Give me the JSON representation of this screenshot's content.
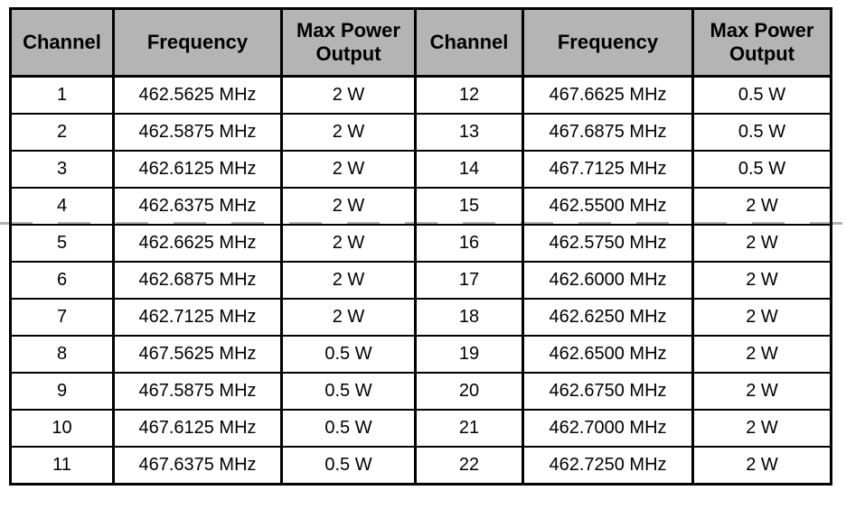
{
  "page": {
    "background": "#ffffff",
    "page_break_color": "#b0b0b0"
  },
  "table": {
    "header_bg": "#b4b4b4",
    "border_color": "#000000",
    "headers": [
      "Channel",
      "Frequency",
      "Max Power Output",
      "Channel",
      "Frequency",
      "Max Power Output"
    ],
    "rows": [
      {
        "channel_l": "1",
        "frequency_l": "462.5625 MHz",
        "power_l": "2 W",
        "channel_r": "12",
        "frequency_r": "467.6625 MHz",
        "power_r": "0.5 W"
      },
      {
        "channel_l": "2",
        "frequency_l": "462.5875 MHz",
        "power_l": "2 W",
        "channel_r": "13",
        "frequency_r": "467.6875 MHz",
        "power_r": "0.5 W"
      },
      {
        "channel_l": "3",
        "frequency_l": "462.6125 MHz",
        "power_l": "2 W",
        "channel_r": "14",
        "frequency_r": "467.7125 MHz",
        "power_r": "0.5 W"
      },
      {
        "channel_l": "4",
        "frequency_l": "462.6375 MHz",
        "power_l": "2 W",
        "channel_r": "15",
        "frequency_r": "462.5500 MHz",
        "power_r": "2 W"
      },
      {
        "channel_l": "5",
        "frequency_l": "462.6625 MHz",
        "power_l": "2 W",
        "channel_r": "16",
        "frequency_r": "462.5750 MHz",
        "power_r": "2 W"
      },
      {
        "channel_l": "6",
        "frequency_l": "462.6875 MHz",
        "power_l": "2 W",
        "channel_r": "17",
        "frequency_r": "462.6000 MHz",
        "power_r": "2 W"
      },
      {
        "channel_l": "7",
        "frequency_l": "462.7125 MHz",
        "power_l": "2 W",
        "channel_r": "18",
        "frequency_r": "462.6250 MHz",
        "power_r": "2 W"
      },
      {
        "channel_l": "8",
        "frequency_l": "467.5625 MHz",
        "power_l": "0.5 W",
        "channel_r": "19",
        "frequency_r": "462.6500 MHz",
        "power_r": "2 W"
      },
      {
        "channel_l": "9",
        "frequency_l": "467.5875 MHz",
        "power_l": "0.5 W",
        "channel_r": "20",
        "frequency_r": "462.6750 MHz",
        "power_r": "2 W"
      },
      {
        "channel_l": "10",
        "frequency_l": "467.6125 MHz",
        "power_l": "0.5 W",
        "channel_r": "21",
        "frequency_r": "462.7000 MHz",
        "power_r": "2 W"
      },
      {
        "channel_l": "11",
        "frequency_l": "467.6375 MHz",
        "power_l": "0.5 W",
        "channel_r": "22",
        "frequency_r": "462.7250 MHz",
        "power_r": "2 W"
      }
    ]
  }
}
